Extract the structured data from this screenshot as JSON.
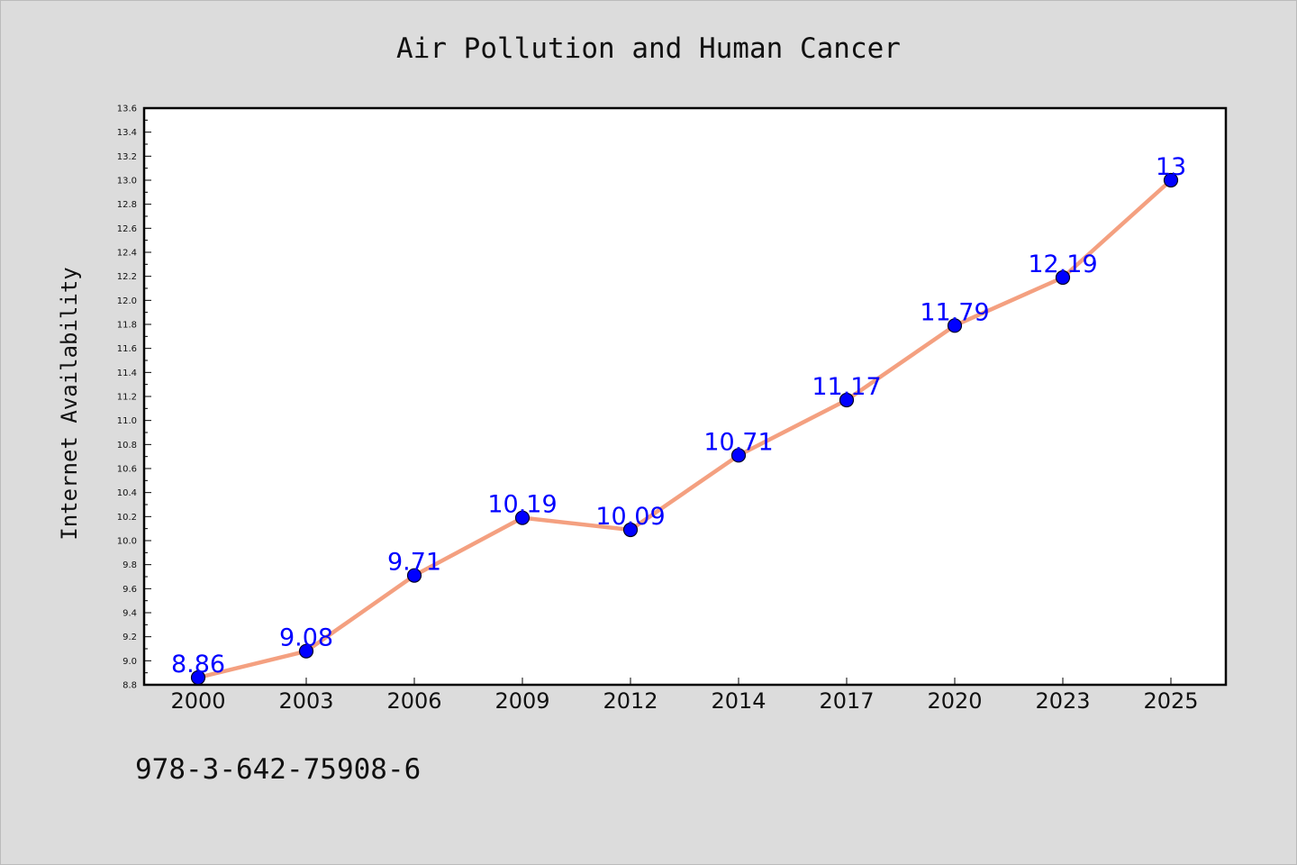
{
  "chart_data": {
    "type": "line",
    "title": "Air Pollution and Human Cancer",
    "xlabel": "",
    "ylabel": "Internet Availability",
    "categories": [
      "2000",
      "2003",
      "2006",
      "2009",
      "2012",
      "2014",
      "2017",
      "2020",
      "2023",
      "2025"
    ],
    "series": [
      {
        "values": [
          8.86,
          9.08,
          9.71,
          10.19,
          10.09,
          10.71,
          11.17,
          11.79,
          12.19,
          13
        ],
        "line_color": "#f4a080",
        "marker_color": "#0000ff",
        "label_color": "#0000ff"
      }
    ],
    "data_labels": [
      "8.86",
      "9.08",
      "9.71",
      "10.19",
      "10.09",
      "10.71",
      "11.17",
      "11.79",
      "12.19",
      "13"
    ],
    "ylim": [
      8.8,
      13.6
    ],
    "yticks": [
      "8.8",
      "9.0",
      "9.2",
      "9.4",
      "9.6",
      "9.8",
      "10.0",
      "10.2",
      "10.4",
      "10.6",
      "10.8",
      "11.0",
      "11.2",
      "11.4",
      "11.6",
      "11.8",
      "12.0",
      "12.2",
      "12.4",
      "12.6",
      "12.8",
      "13.0",
      "13.2",
      "13.4",
      "13.6"
    ],
    "grid": false,
    "legend": "none",
    "background_color": "#dcdcdc",
    "plot_background_color": "#ffffff"
  },
  "footer_text": "978-3-642-75908-6"
}
